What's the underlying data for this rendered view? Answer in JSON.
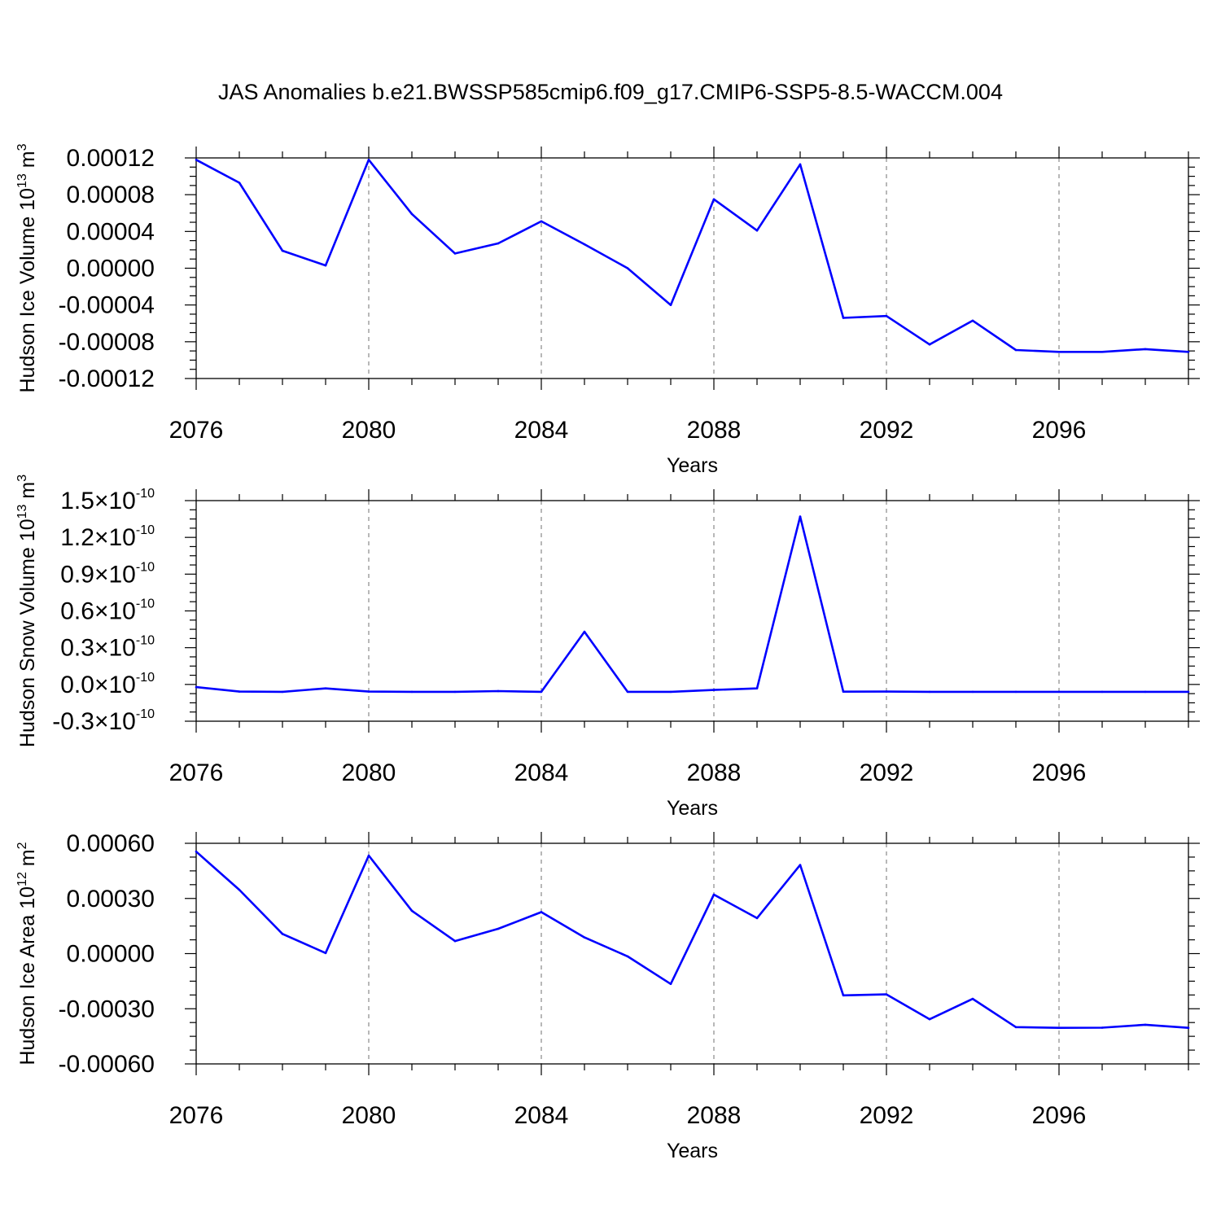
{
  "title": "JAS Anomalies b.e21.BWSSP585cmip6.f09_g17.CMIP6-SSP5-8.5-WACCM.004",
  "colors": {
    "line": "#0000ff",
    "axes": "#000000",
    "grid": "#888888"
  },
  "chart_data": [
    {
      "type": "line",
      "name": "ice-volume",
      "ylabel": "Hudson Ice Volume 10",
      "ylabel_exp": "13",
      "ylabel_unit": "m",
      "ylabel_unit_exp": "3",
      "xlabel": "Years",
      "xlim": [
        2076,
        2099
      ],
      "ylim": [
        -0.00012,
        0.00012
      ],
      "x_ticks": [
        "2076",
        "2080",
        "2084",
        "2088",
        "2092",
        "2096"
      ],
      "y_ticks": [
        {
          "value": 0.00012,
          "label": "0.00012"
        },
        {
          "value": 8e-05,
          "label": "0.00008"
        },
        {
          "value": 4e-05,
          "label": "0.00004"
        },
        {
          "value": 0.0,
          "label": "0.00000"
        },
        {
          "value": -4e-05,
          "label": "-0.00004"
        },
        {
          "value": -8e-05,
          "label": "-0.00008"
        },
        {
          "value": -0.00012,
          "label": "-0.00012"
        }
      ],
      "x": [
        2076,
        2077,
        2078,
        2079,
        2080,
        2081,
        2082,
        2083,
        2084,
        2085,
        2086,
        2087,
        2088,
        2089,
        2090,
        2091,
        2092,
        2093,
        2094,
        2095,
        2096,
        2097,
        2098,
        2099
      ],
      "values": [
        0.000118,
        9.3e-05,
        1.9e-05,
        3e-06,
        0.000118,
        5.9e-05,
        1.6e-05,
        2.7e-05,
        5.1e-05,
        2.6e-05,
        0.0,
        -4e-05,
        7.5e-05,
        4.1e-05,
        0.000113,
        -5.4e-05,
        -5.2e-05,
        -8.3e-05,
        -5.7e-05,
        -8.9e-05,
        -9.1e-05,
        -9.1e-05,
        -8.8e-05,
        -9.1e-05
      ]
    },
    {
      "type": "line",
      "name": "snow-volume",
      "ylabel": "Hudson Snow Volume 10",
      "ylabel_exp": "13",
      "ylabel_unit": "m",
      "ylabel_unit_exp": "3",
      "xlabel": "Years",
      "xlim": [
        2076,
        2099
      ],
      "ylim": [
        -3e-11,
        1.5e-10
      ],
      "x_ticks": [
        "2076",
        "2080",
        "2084",
        "2088",
        "2092",
        "2096"
      ],
      "y_ticks": [
        {
          "value": 1.5e-10,
          "mant": "1.5",
          "times": "×",
          "base": "10",
          "exp": "-10"
        },
        {
          "value": 1.2e-10,
          "mant": "1.2",
          "times": "×",
          "base": "10",
          "exp": "-10"
        },
        {
          "value": 9e-11,
          "mant": "0.9",
          "times": "×",
          "base": "10",
          "exp": "-10"
        },
        {
          "value": 6e-11,
          "mant": "0.6",
          "times": "×",
          "base": "10",
          "exp": "-10"
        },
        {
          "value": 3e-11,
          "mant": "0.3",
          "times": "×",
          "base": "10",
          "exp": "-10"
        },
        {
          "value": 0.0,
          "mant": "0.0",
          "times": "×",
          "base": "10",
          "exp": "-10"
        },
        {
          "value": -3e-11,
          "mant": "-0.3",
          "times": "×",
          "base": "10",
          "exp": "-10"
        }
      ],
      "x": [
        2076,
        2077,
        2078,
        2079,
        2080,
        2081,
        2082,
        2083,
        2084,
        2085,
        2086,
        2087,
        2088,
        2089,
        2090,
        2091,
        2092,
        2093,
        2094,
        2095,
        2096,
        2097,
        2098,
        2099
      ],
      "values": [
        -2.2e-12,
        -5.8e-12,
        -6e-12,
        -3.2e-12,
        -5.8e-12,
        -6e-12,
        -6e-12,
        -5.4e-12,
        -6e-12,
        4.3e-11,
        -6e-12,
        -6e-12,
        -4.5e-12,
        -3.2e-12,
        1.37e-10,
        -5.9e-12,
        -5.8e-12,
        -6e-12,
        -6e-12,
        -6e-12,
        -6e-12,
        -6e-12,
        -6e-12,
        -6e-12
      ]
    },
    {
      "type": "line",
      "name": "ice-area",
      "ylabel": "Hudson Ice Area 10",
      "ylabel_exp": "12",
      "ylabel_unit": "m",
      "ylabel_unit_exp": "2",
      "xlabel": "Years",
      "xlim": [
        2076,
        2099
      ],
      "ylim": [
        -0.0006,
        0.0006
      ],
      "x_ticks": [
        "2076",
        "2080",
        "2084",
        "2088",
        "2092",
        "2096"
      ],
      "y_ticks": [
        {
          "value": 0.0006,
          "label": "0.00060"
        },
        {
          "value": 0.0003,
          "label": "0.00030"
        },
        {
          "value": 0.0,
          "label": "0.00000"
        },
        {
          "value": -0.0003,
          "label": "-0.00030"
        },
        {
          "value": -0.0006,
          "label": "-0.00060"
        }
      ],
      "x": [
        2076,
        2077,
        2078,
        2079,
        2080,
        2081,
        2082,
        2083,
        2084,
        2085,
        2086,
        2087,
        2088,
        2089,
        2090,
        2091,
        2092,
        2093,
        2094,
        2095,
        2096,
        2097,
        2098,
        2099
      ],
      "values": [
        0.000555,
        0.000347,
        0.000107,
        3e-06,
        0.000533,
        0.000233,
        6.8e-05,
        0.000135,
        0.000226,
        8.8e-05,
        -1.5e-05,
        -0.000165,
        0.000321,
        0.000193,
        0.000482,
        -0.000227,
        -0.000222,
        -0.000357,
        -0.000246,
        -0.0004,
        -0.000404,
        -0.000403,
        -0.000387,
        -0.000404
      ]
    }
  ]
}
